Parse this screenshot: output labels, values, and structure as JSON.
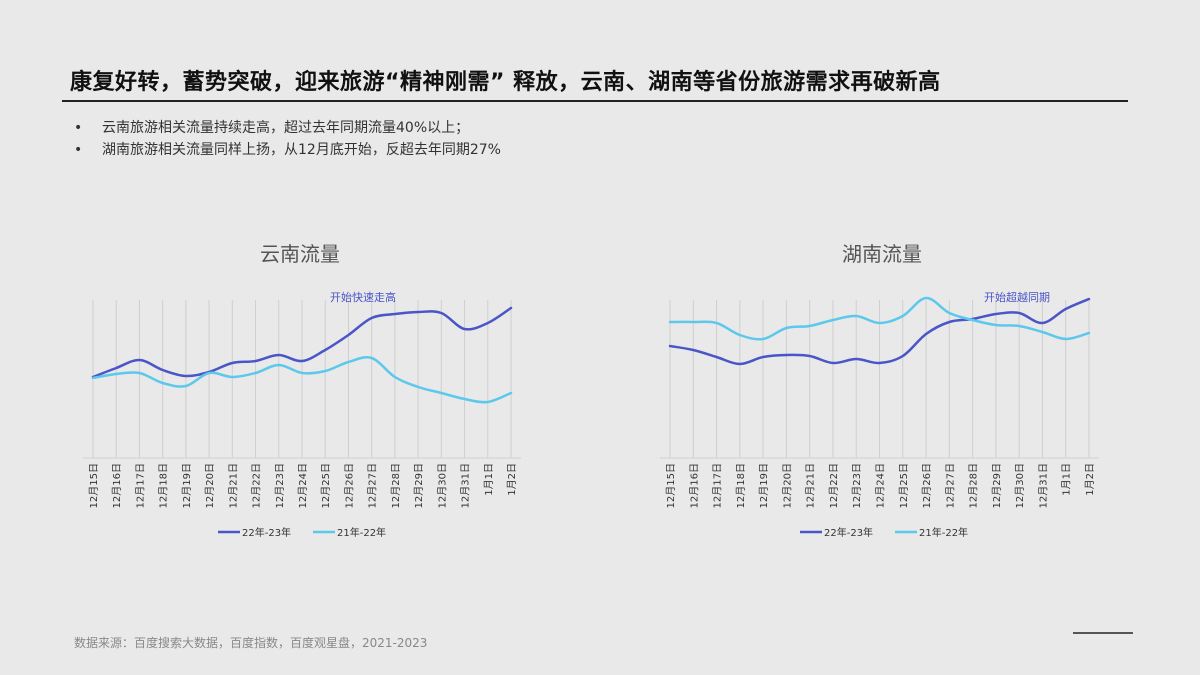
{
  "header": {
    "title": "康复好转，蓄势突破，迎来旅游“精神刚需” 释放，云南、湖南等省份旅游需求再破新高"
  },
  "bullets": [
    "云南旅游相关流量持续走高，超过去年同期流量40%以上；",
    "湖南旅游相关流量同样上扬，从12月底开始，反超去年同期27%"
  ],
  "footer": {
    "source": "数据来源：百度搜索大数据，百度指数，百度观星盘，2021-2023"
  },
  "colors": {
    "series_2223": "#4a55c8",
    "series_2122": "#5cc8ec",
    "background": "#e9e9e9"
  },
  "chart_data": [
    {
      "type": "line",
      "title": "云南流量",
      "annotation": "开始快速走高",
      "categories": [
        "12月15日",
        "12月16日",
        "12月17日",
        "12月18日",
        "12月19日",
        "12月20日",
        "12月21日",
        "12月22日",
        "12月23日",
        "12月24日",
        "12月25日",
        "12月26日",
        "12月27日",
        "12月28日",
        "12月29日",
        "12月30日",
        "12月31日",
        "1月1日",
        "1月2日"
      ],
      "series": [
        {
          "name": "22年-23年",
          "values": [
            81,
            90,
            98,
            88,
            82,
            86,
            95,
            97,
            103,
            97,
            108,
            123,
            140,
            144,
            146,
            145,
            129,
            135,
            150
          ]
        },
        {
          "name": "21年-22年",
          "values": [
            80,
            84,
            85,
            75,
            72,
            85,
            81,
            85,
            93,
            85,
            87,
            96,
            100,
            81,
            71,
            65,
            59,
            56,
            65
          ]
        }
      ],
      "ylim": [
        0,
        180
      ],
      "y_axis_shown": false,
      "grid": "vertical",
      "legend": "bottom"
    },
    {
      "type": "line",
      "title": "湖南流量",
      "annotation": "开始超越同期",
      "categories": [
        "12月15日",
        "12月16日",
        "12月17日",
        "12月18日",
        "12月19日",
        "12月20日",
        "12月21日",
        "12月22日",
        "12月23日",
        "12月24日",
        "12月25日",
        "12月26日",
        "12月27日",
        "12月28日",
        "12月29日",
        "12月30日",
        "12月31日",
        "1月1日",
        "1月2日"
      ],
      "series": [
        {
          "name": "22年-23年",
          "values": [
            112,
            108,
            101,
            94,
            101,
            103,
            102,
            95,
            99,
            95,
            102,
            124,
            136,
            139,
            144,
            145,
            135,
            149,
            159
          ]
        },
        {
          "name": "21年-22年",
          "values": [
            136,
            136,
            135,
            123,
            119,
            130,
            132,
            138,
            142,
            135,
            142,
            160,
            145,
            138,
            133,
            132,
            126,
            119,
            125
          ]
        }
      ],
      "ylim": [
        0,
        180
      ],
      "y_axis_shown": false,
      "grid": "vertical",
      "legend": "bottom"
    }
  ]
}
